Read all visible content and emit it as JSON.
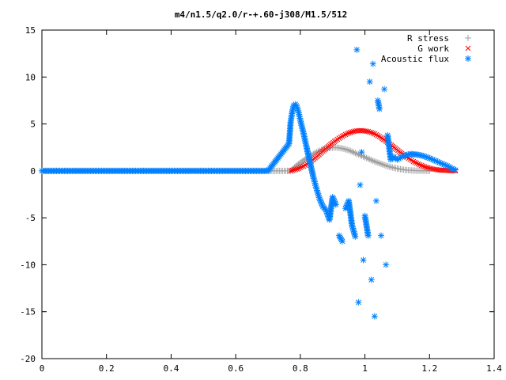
{
  "chart_data": {
    "type": "scatter",
    "title": "m4/n1.5/q2.0/r-+.60-j308/M1.5/512",
    "xlabel": "",
    "ylabel": "",
    "xlim": [
      0,
      1.4
    ],
    "ylim": [
      -20,
      15
    ],
    "xticks": [
      "0",
      "0.2",
      "0.4",
      "0.6",
      "0.8",
      "1",
      "1.2",
      "1.4"
    ],
    "yticks": [
      "15",
      "10",
      "5",
      "0",
      "-5",
      "-10",
      "-15",
      "-20"
    ],
    "grid": false,
    "legend_position": "top-right",
    "series": [
      {
        "name": "R stress",
        "marker": "plus",
        "color": "#a0a0a0",
        "points": [
          [
            0.0,
            0
          ],
          [
            0.1,
            0
          ],
          [
            0.2,
            0
          ],
          [
            0.3,
            0
          ],
          [
            0.4,
            0
          ],
          [
            0.5,
            0
          ],
          [
            0.6,
            0
          ],
          [
            0.7,
            0
          ],
          [
            0.77,
            0.0
          ],
          [
            0.79,
            0.6
          ],
          [
            0.81,
            1.1
          ],
          [
            0.83,
            1.6
          ],
          [
            0.85,
            2.0
          ],
          [
            0.87,
            2.3
          ],
          [
            0.89,
            2.45
          ],
          [
            0.91,
            2.5
          ],
          [
            0.93,
            2.4
          ],
          [
            0.95,
            2.2
          ],
          [
            0.97,
            1.9
          ],
          [
            0.99,
            1.6
          ],
          [
            1.01,
            1.3
          ],
          [
            1.03,
            1.0
          ],
          [
            1.05,
            0.75
          ],
          [
            1.07,
            0.5
          ],
          [
            1.09,
            0.32
          ],
          [
            1.11,
            0.18
          ],
          [
            1.13,
            0.08
          ],
          [
            1.16,
            0.02
          ],
          [
            1.2,
            0.0
          ]
        ]
      },
      {
        "name": "G work",
        "marker": "cross",
        "color": "#ff0000",
        "points": [
          [
            0.77,
            0.0
          ],
          [
            0.79,
            0.2
          ],
          [
            0.81,
            0.5
          ],
          [
            0.83,
            0.95
          ],
          [
            0.85,
            1.5
          ],
          [
            0.87,
            2.1
          ],
          [
            0.89,
            2.7
          ],
          [
            0.91,
            3.25
          ],
          [
            0.93,
            3.7
          ],
          [
            0.95,
            4.05
          ],
          [
            0.97,
            4.25
          ],
          [
            0.99,
            4.3
          ],
          [
            1.01,
            4.2
          ],
          [
            1.03,
            3.95
          ],
          [
            1.05,
            3.55
          ],
          [
            1.07,
            3.05
          ],
          [
            1.09,
            2.5
          ],
          [
            1.11,
            1.95
          ],
          [
            1.13,
            1.45
          ],
          [
            1.15,
            1.0
          ],
          [
            1.17,
            0.65
          ],
          [
            1.19,
            0.38
          ],
          [
            1.21,
            0.2
          ],
          [
            1.23,
            0.09
          ],
          [
            1.26,
            0.03
          ],
          [
            1.28,
            0.0
          ]
        ]
      },
      {
        "name": "Acoustic flux",
        "marker": "star",
        "color": "#0080ff",
        "points": [
          [
            0.0,
            0
          ],
          [
            0.1,
            0
          ],
          [
            0.2,
            0
          ],
          [
            0.3,
            0
          ],
          [
            0.4,
            0
          ],
          [
            0.5,
            0
          ],
          [
            0.6,
            0
          ],
          [
            0.7,
            0
          ],
          [
            0.765,
            2.9
          ],
          [
            0.77,
            5.2
          ],
          [
            0.775,
            6.3
          ],
          [
            0.78,
            7.0
          ],
          [
            0.785,
            7.1
          ],
          [
            0.79,
            6.8
          ],
          [
            0.795,
            6.2
          ],
          [
            0.8,
            5.4
          ],
          [
            0.81,
            4.0
          ],
          [
            0.82,
            2.4
          ],
          [
            0.83,
            0.9
          ],
          [
            0.84,
            -0.6
          ],
          [
            0.85,
            -1.9
          ],
          [
            0.86,
            -3.0
          ],
          [
            0.87,
            -3.8
          ],
          [
            0.88,
            -4.2
          ],
          [
            0.89,
            -5.2
          ],
          [
            0.9,
            -2.8
          ],
          [
            0.91,
            -3.6
          ],
          [
            0.92,
            -6.9
          ],
          [
            0.93,
            -7.5
          ],
          [
            0.94,
            -4.0
          ],
          [
            0.95,
            -3.2
          ],
          [
            0.96,
            -5.8
          ],
          [
            0.97,
            -7.0
          ],
          [
            0.975,
            12.9
          ],
          [
            0.98,
            -14.0
          ],
          [
            0.985,
            -1.5
          ],
          [
            0.99,
            2.0
          ],
          [
            0.995,
            -9.5
          ],
          [
            1.0,
            -4.8
          ],
          [
            1.01,
            -6.9
          ],
          [
            1.015,
            9.5
          ],
          [
            1.02,
            -11.6
          ],
          [
            1.025,
            11.4
          ],
          [
            1.03,
            -15.5
          ],
          [
            1.035,
            -3.2
          ],
          [
            1.04,
            7.5
          ],
          [
            1.045,
            6.6
          ],
          [
            1.05,
            -6.9
          ],
          [
            1.06,
            8.7
          ],
          [
            1.065,
            -10.0
          ],
          [
            1.07,
            3.8
          ],
          [
            1.08,
            1.2
          ],
          [
            1.09,
            1.5
          ],
          [
            1.1,
            1.2
          ],
          [
            1.12,
            1.6
          ],
          [
            1.14,
            1.8
          ],
          [
            1.16,
            1.75
          ],
          [
            1.18,
            1.6
          ],
          [
            1.2,
            1.35
          ],
          [
            1.22,
            1.05
          ],
          [
            1.24,
            0.75
          ],
          [
            1.26,
            0.45
          ],
          [
            1.27,
            0.25
          ],
          [
            1.28,
            0.1
          ]
        ]
      }
    ]
  }
}
